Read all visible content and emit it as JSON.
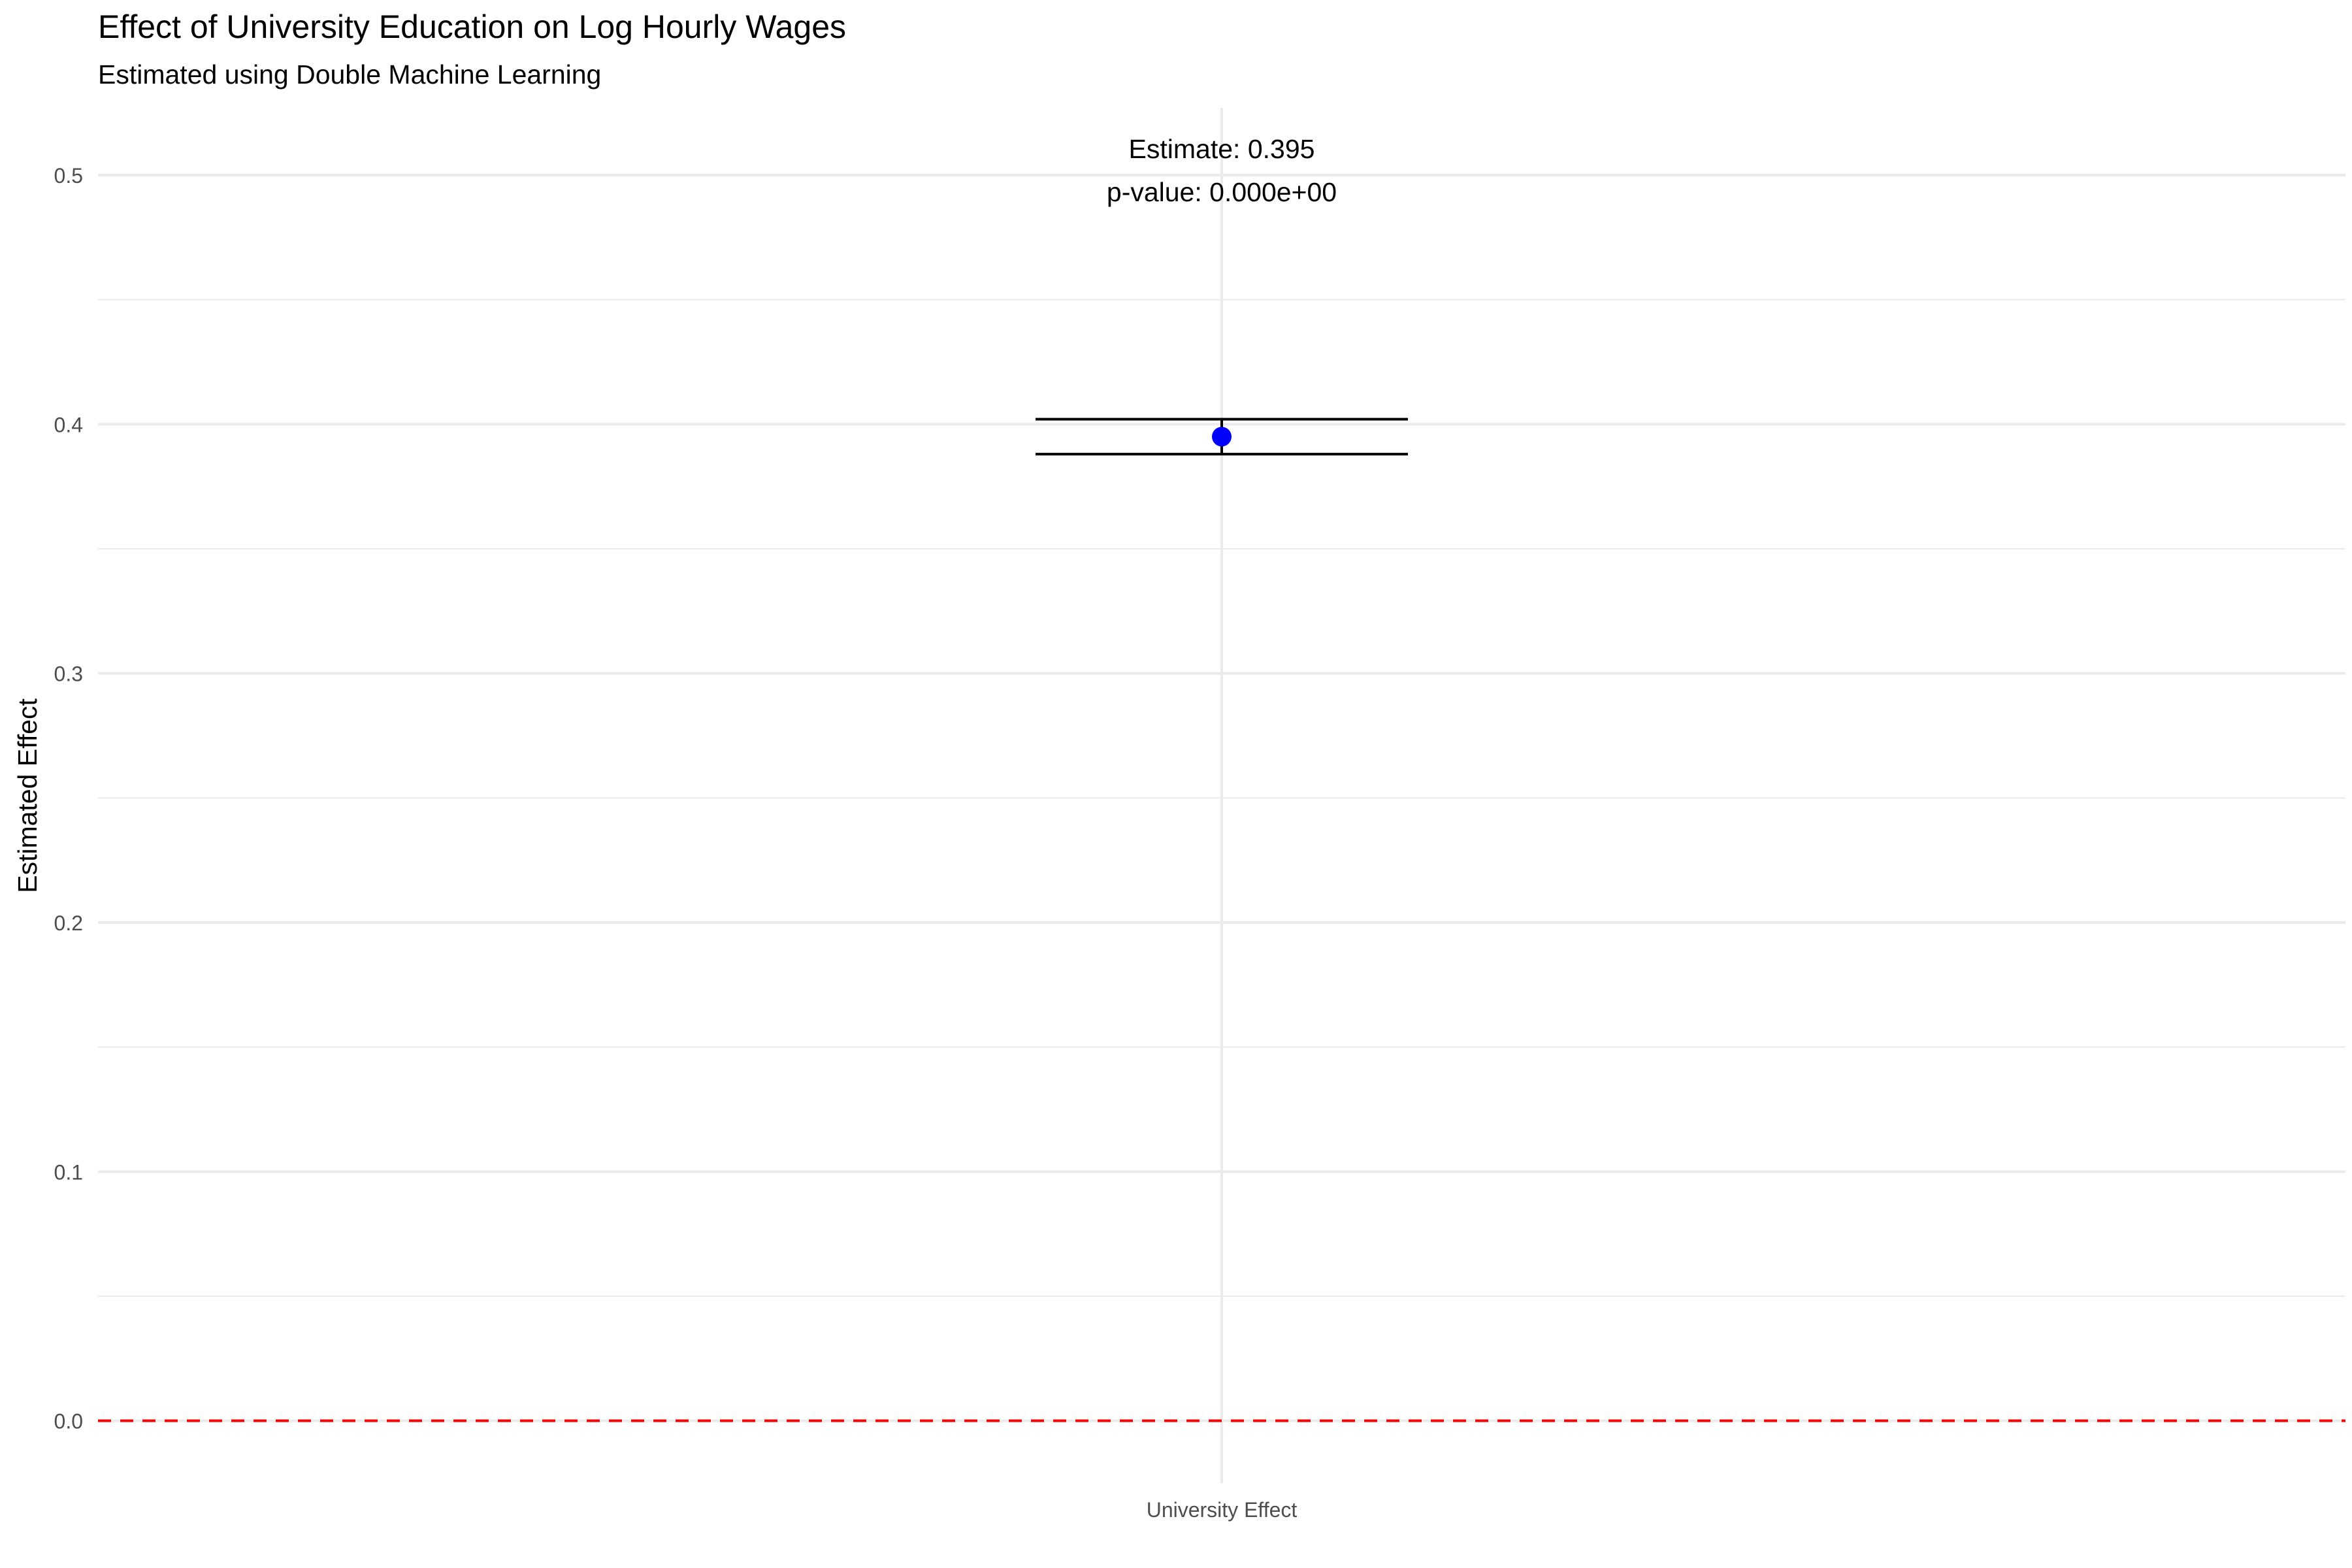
{
  "chart_data": {
    "type": "scatter",
    "title": "Effect of University Education on Log Hourly Wages",
    "subtitle": "Estimated using Double Machine Learning",
    "xlabel": "",
    "ylabel": "Estimated Effect",
    "categories": [
      "University Effect"
    ],
    "values": [
      0.395
    ],
    "conf_low": [
      0.388
    ],
    "conf_high": [
      0.402
    ],
    "annotation_lines": [
      "Estimate: 0.395",
      "p-value: 0.000e+00"
    ],
    "ylim": [
      -0.025,
      0.527
    ],
    "y_ticks": [
      0.0,
      0.1,
      0.2,
      0.3,
      0.4,
      0.5
    ],
    "y_tick_labels": [
      "0.0",
      "0.1",
      "0.2",
      "0.3",
      "0.4",
      "0.5"
    ],
    "reference_line": {
      "y": 0.0,
      "style": "dashed",
      "color": "#ff0000"
    },
    "point_color": "#0000ff",
    "errorbar_color": "#000000",
    "grid": true,
    "legend": "none"
  }
}
